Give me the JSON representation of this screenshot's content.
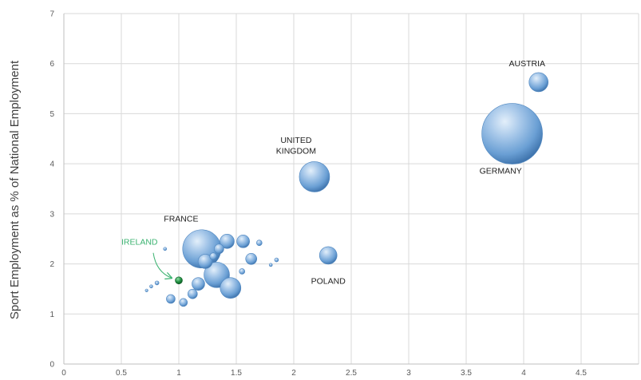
{
  "chart_data": {
    "type": "scatter",
    "title": "",
    "xlabel": "",
    "ylabel": "Sport Employment as % of National Employment",
    "xlim": [
      0,
      5
    ],
    "ylim": [
      0,
      7
    ],
    "xticks": [
      "0",
      "0.5",
      "1",
      "1.5",
      "2",
      "2.5",
      "3",
      "3.5",
      "4",
      "4.5"
    ],
    "yticks": [
      "0",
      "1",
      "2",
      "3",
      "4",
      "5",
      "6",
      "7"
    ],
    "grid": true,
    "series": [
      {
        "points": [
          {
            "x": 3.9,
            "y": 4.6,
            "size": 38
          },
          {
            "x": 4.13,
            "y": 5.63,
            "size": 12
          },
          {
            "x": 2.18,
            "y": 3.74,
            "size": 19
          },
          {
            "x": 2.3,
            "y": 2.17,
            "size": 11
          },
          {
            "x": 1.2,
            "y": 2.3,
            "size": 24
          },
          {
            "x": 1.33,
            "y": 1.78,
            "size": 16
          },
          {
            "x": 1.45,
            "y": 1.52,
            "size": 13
          },
          {
            "x": 1.23,
            "y": 2.05,
            "size": 9
          },
          {
            "x": 1.42,
            "y": 2.45,
            "size": 9
          },
          {
            "x": 1.56,
            "y": 2.45,
            "size": 8
          },
          {
            "x": 1.63,
            "y": 2.1,
            "size": 7
          },
          {
            "x": 1.17,
            "y": 1.6,
            "size": 8
          },
          {
            "x": 1.35,
            "y": 2.3,
            "size": 6
          },
          {
            "x": 1.12,
            "y": 1.4,
            "size": 6
          },
          {
            "x": 0.93,
            "y": 1.3,
            "size": 5.5
          },
          {
            "x": 1.04,
            "y": 1.23,
            "size": 5
          },
          {
            "x": 1.3,
            "y": 2.15,
            "size": 4.5
          },
          {
            "x": 1.7,
            "y": 2.42,
            "size": 3.5
          },
          {
            "x": 1.55,
            "y": 1.85,
            "size": 3.5
          },
          {
            "x": 1.85,
            "y": 2.08,
            "size": 2.5
          },
          {
            "x": 1.8,
            "y": 1.98,
            "size": 2
          },
          {
            "x": 0.88,
            "y": 2.3,
            "size": 2
          },
          {
            "x": 0.81,
            "y": 1.62,
            "size": 2.5
          },
          {
            "x": 0.76,
            "y": 1.55,
            "size": 2
          },
          {
            "x": 0.72,
            "y": 1.47,
            "size": 1.8
          },
          {
            "x": 1.0,
            "y": 1.67,
            "size": 4.5,
            "color": "#1f8c3f"
          }
        ]
      }
    ],
    "annotations": [
      {
        "text": "AUSTRIA",
        "x": 4.03,
        "y": 5.95
      },
      {
        "text": "UNITED",
        "x": 2.02,
        "y": 4.42
      },
      {
        "text": "KINGDOM",
        "x": 2.02,
        "y": 4.2
      },
      {
        "text": "GERMANY",
        "x": 3.8,
        "y": 3.8
      },
      {
        "text": "POLAND",
        "x": 2.3,
        "y": 1.6
      },
      {
        "text": "FRANCE",
        "x": 1.02,
        "y": 2.85
      },
      {
        "text": "IRELAND",
        "x": 0.5,
        "y": 2.38,
        "color": "#3cb371"
      }
    ],
    "colors": {
      "bubble": "#6a9fd4",
      "highlight": "#1f8c3f",
      "annotation_green": "#3cb371",
      "grid": "#d9d9d9"
    }
  }
}
